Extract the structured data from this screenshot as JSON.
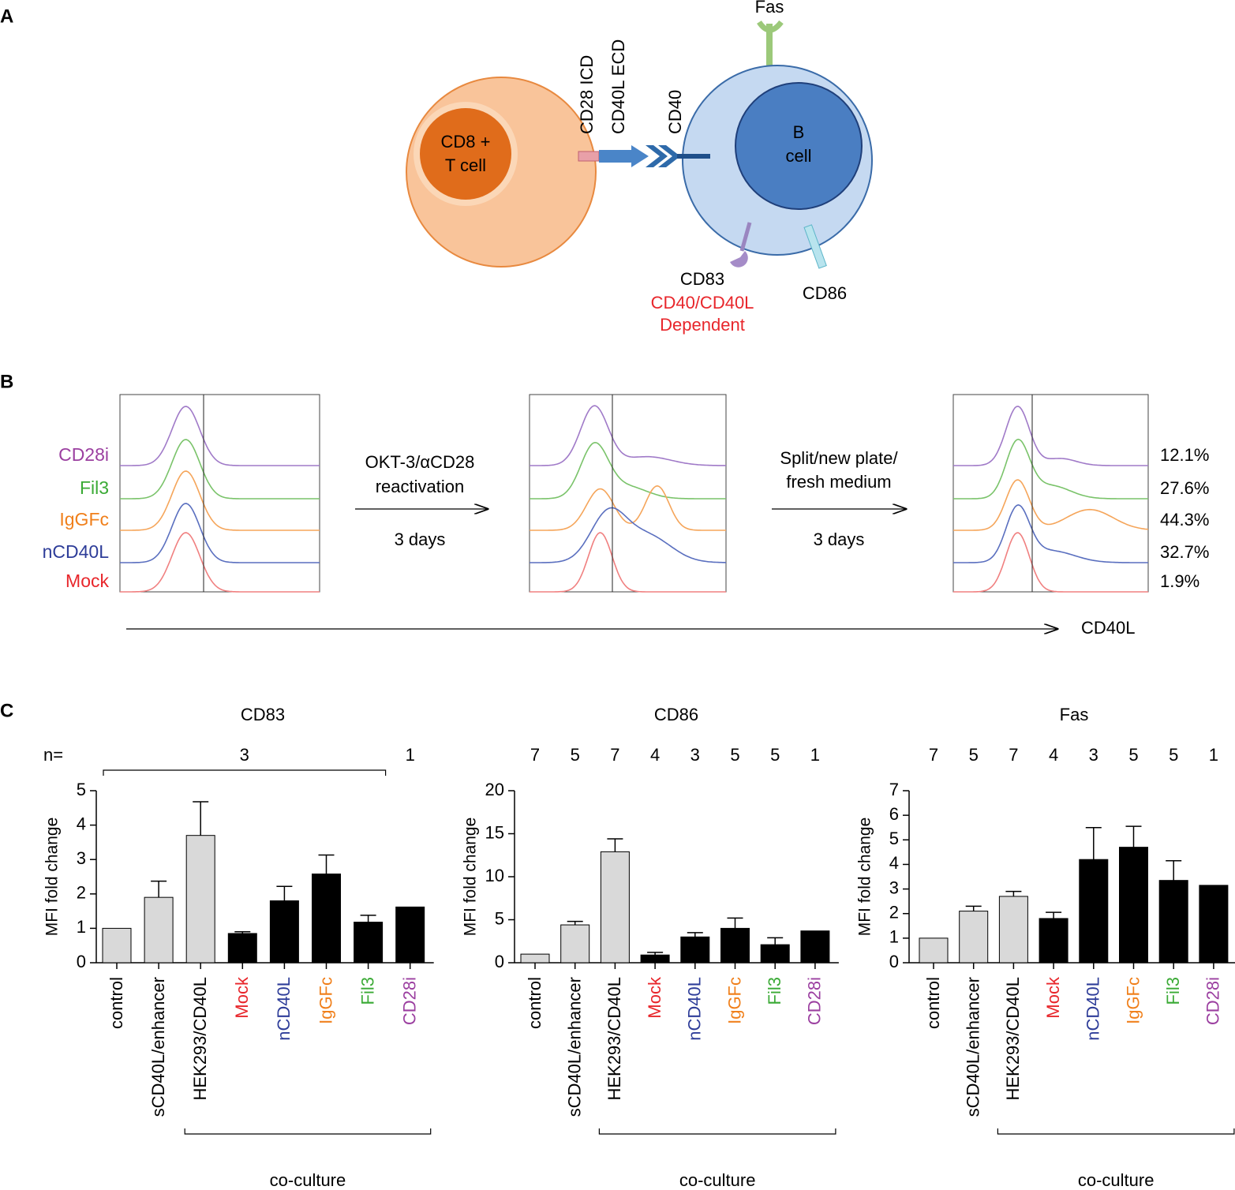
{
  "panel_labels": [
    "A",
    "B",
    "C"
  ],
  "diagram": {
    "t_cell": [
      "CD8 +",
      "T cell"
    ],
    "b_cell": [
      "B",
      "cell"
    ],
    "cd28_icd": "CD28 ICD",
    "cd40l_ecd": "CD40L ECD",
    "cd40": "CD40",
    "fas": "Fas",
    "cd83": "CD83",
    "cd83_note": [
      "CD40/CD40L",
      "Dependent"
    ],
    "cd86": "CD86"
  },
  "flow": {
    "samples": [
      "CD28i",
      "Fil3",
      "IgGFc",
      "nCD40L",
      "Mock"
    ],
    "sample_colors": [
      "#9b3fa0",
      "#3aaa35",
      "#f07f1a",
      "#2e3d99",
      "#e8262b"
    ],
    "curve_colors": [
      "#a07ac8",
      "#7ac36a",
      "#f5a55a",
      "#5a6fbf",
      "#f08080"
    ],
    "step1": [
      "OKT-3/αCD28",
      "reactivation",
      "3 days"
    ],
    "step2": [
      "Split/new plate/",
      "fresh medium",
      "3 days"
    ],
    "percentages": [
      "12.1%",
      "27.6%",
      "44.3%",
      "32.7%",
      "1.9%"
    ],
    "axis_label": "CD40L"
  },
  "chart_data": [
    {
      "type": "bar",
      "title": "CD83",
      "ylabel": "MFI fold change",
      "categories": [
        "control",
        "sCD40L/enhancer",
        "HEK293/CD40L",
        "Mock",
        "nCD40L",
        "IgGFc",
        "Fil3",
        "CD28i"
      ],
      "category_colors": [
        "#000000",
        "#000000",
        "#000000",
        "#e8262b",
        "#2e3d99",
        "#f07f1a",
        "#3aaa35",
        "#9b3fa0"
      ],
      "colors": [
        "#d9d9d9",
        "#d9d9d9",
        "#d9d9d9",
        "#000000",
        "#000000",
        "#000000",
        "#000000",
        "#000000"
      ],
      "values": [
        1,
        1.9,
        3.7,
        0.85,
        1.8,
        2.58,
        1.18,
        1.62
      ],
      "errors": [
        null,
        0.47,
        0.98,
        0.05,
        0.42,
        0.55,
        0.2,
        null
      ],
      "ylim": [
        0,
        5
      ],
      "yticks": [
        0,
        1,
        2,
        3,
        4,
        5
      ],
      "n_label": "n=",
      "n": [
        3,
        1
      ],
      "group_label": "co-culture"
    },
    {
      "type": "bar",
      "title": "CD86",
      "ylabel": "MFI fold change",
      "categories": [
        "control",
        "sCD40L/enhancer",
        "HEK293/CD40L",
        "Mock",
        "nCD40L",
        "IgGFc",
        "Fil3",
        "CD28i"
      ],
      "category_colors": [
        "#000000",
        "#000000",
        "#000000",
        "#e8262b",
        "#2e3d99",
        "#f07f1a",
        "#3aaa35",
        "#9b3fa0"
      ],
      "colors": [
        "#d9d9d9",
        "#d9d9d9",
        "#d9d9d9",
        "#000000",
        "#000000",
        "#000000",
        "#000000",
        "#000000"
      ],
      "values": [
        1,
        4.4,
        12.9,
        0.9,
        3.0,
        4.0,
        2.1,
        3.7
      ],
      "errors": [
        null,
        0.4,
        1.5,
        0.3,
        0.5,
        1.2,
        0.8,
        null
      ],
      "ylim": [
        0,
        20
      ],
      "yticks": [
        0,
        5,
        10,
        15,
        20
      ],
      "n": [
        7,
        5,
        7,
        4,
        3,
        5,
        5,
        1
      ],
      "group_label": "co-culture"
    },
    {
      "type": "bar",
      "title": "Fas",
      "ylabel": "MFI fold change",
      "categories": [
        "control",
        "sCD40L/enhancer",
        "HEK293/CD40L",
        "Mock",
        "nCD40L",
        "IgGFc",
        "Fil3",
        "CD28i"
      ],
      "category_colors": [
        "#000000",
        "#000000",
        "#000000",
        "#e8262b",
        "#2e3d99",
        "#f07f1a",
        "#3aaa35",
        "#9b3fa0"
      ],
      "colors": [
        "#d9d9d9",
        "#d9d9d9",
        "#d9d9d9",
        "#000000",
        "#000000",
        "#000000",
        "#000000",
        "#000000"
      ],
      "values": [
        1,
        2.1,
        2.7,
        1.8,
        4.2,
        4.7,
        3.35,
        3.15
      ],
      "errors": [
        null,
        0.2,
        0.2,
        0.25,
        1.3,
        0.85,
        0.8,
        null
      ],
      "ylim": [
        0,
        7
      ],
      "yticks": [
        0,
        1,
        2,
        3,
        4,
        5,
        6,
        7
      ],
      "n": [
        7,
        5,
        7,
        4,
        3,
        5,
        5,
        1
      ],
      "group_label": "co-culture"
    }
  ]
}
